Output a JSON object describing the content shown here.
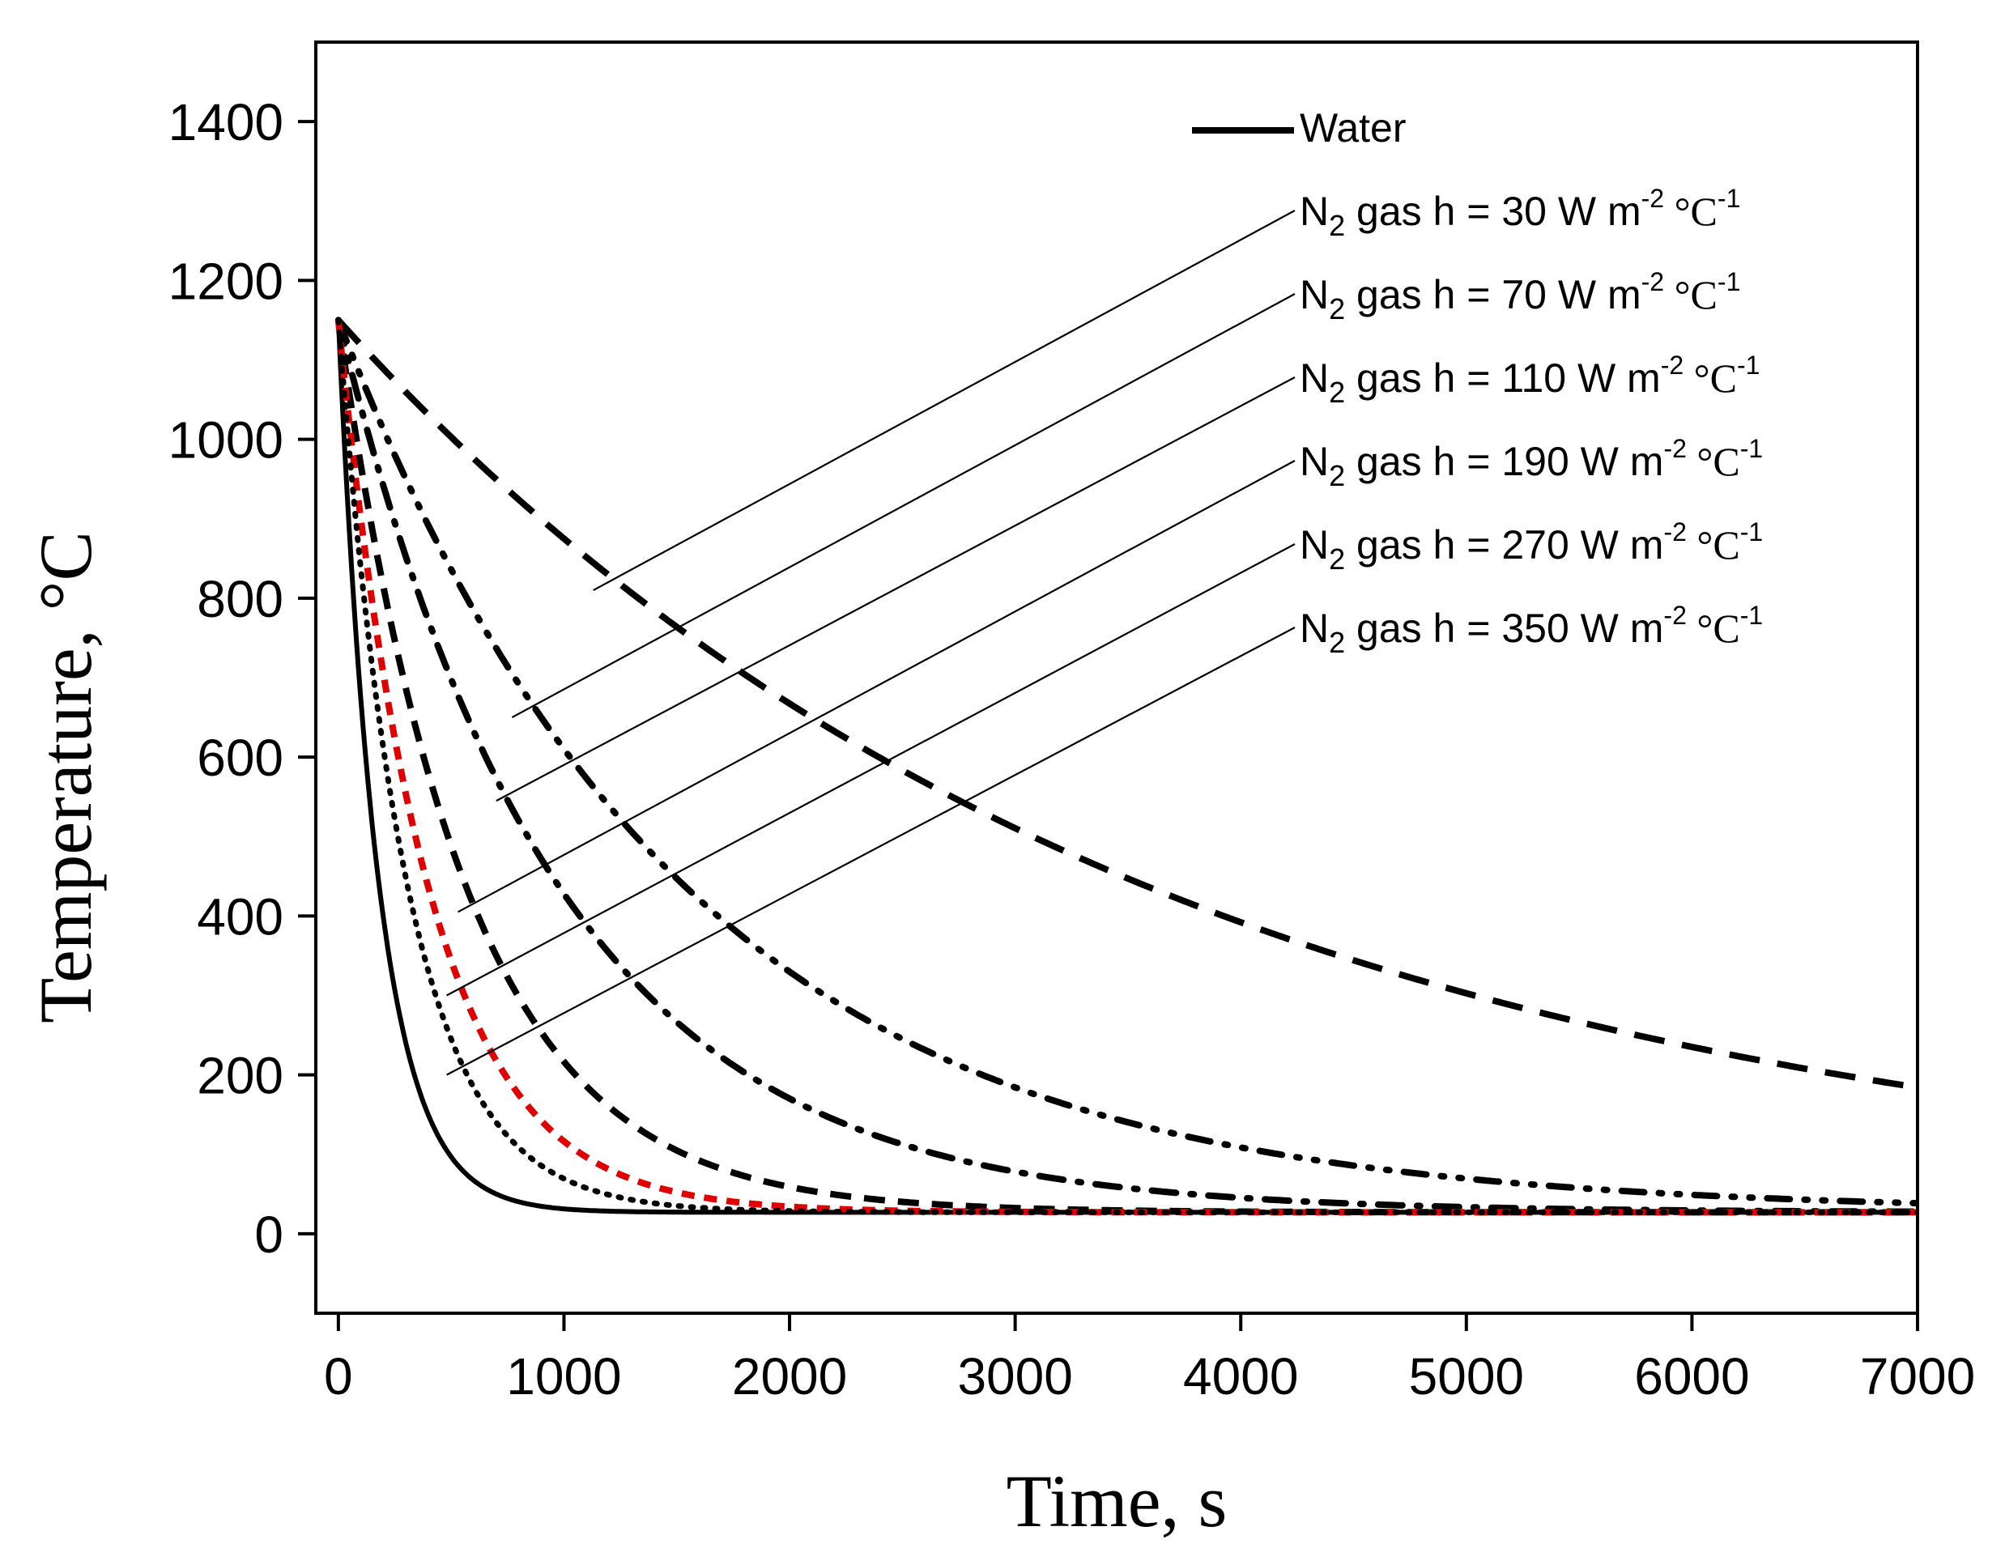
{
  "chart_data": {
    "type": "line",
    "title": "",
    "xlabel": "Time, s",
    "ylabel": "Temperature, °C",
    "xlim": [
      -100,
      7000
    ],
    "ylim": [
      -100,
      1500
    ],
    "xticks": [
      0,
      1000,
      2000,
      3000,
      4000,
      5000,
      6000,
      7000
    ],
    "yticks": [
      0,
      200,
      400,
      600,
      800,
      1000,
      1200,
      1400
    ],
    "x_tick_labels": [
      "0",
      "1000",
      "2000",
      "3000",
      "4000",
      "5000",
      "6000",
      "7000"
    ],
    "y_tick_labels": [
      "0",
      "200",
      "400",
      "600",
      "800",
      "1000",
      "1200",
      "1400"
    ],
    "grid": false,
    "legend_position": "top-right",
    "series": [
      {
        "id": "water",
        "name": "Water",
        "prefix": "",
        "subscript": "",
        "middle": "",
        "h_value": "",
        "unit_w": "",
        "unit_m": "",
        "exp1": "",
        "unit_c": "",
        "exp2": "",
        "color": "#000000",
        "dash": "solid",
        "t_initial": 1150,
        "t_ambient": 27,
        "time_constant": 180
      },
      {
        "id": "h30",
        "name": "N2 gas  h = 30 W m-2 °C-1",
        "prefix": "N",
        "subscript": "2",
        "middle": " gas  h = ",
        "h_value": "30",
        "unit_w": " W m",
        "unit_m": "",
        "exp1": "-2",
        "unit_c": " °C",
        "exp2": "-1",
        "color": "#000000",
        "dash": "long-dash",
        "t_initial": 1150,
        "t_ambient": 27,
        "time_constant": 3560,
        "pointer_x": 1130,
        "pointer_y": 810
      },
      {
        "id": "h70",
        "name": "N2 gas  h = 70 W m-2 °C-1",
        "prefix": "N",
        "subscript": "2",
        "middle": " gas  h = ",
        "h_value": "70",
        "unit_w": " W m",
        "unit_m": "",
        "exp1": "-2",
        "unit_c": " °C",
        "exp2": "-1",
        "color": "#000000",
        "dash": "dash-dot-dot",
        "t_initial": 1150,
        "t_ambient": 27,
        "time_constant": 1526,
        "pointer_x": 770,
        "pointer_y": 650
      },
      {
        "id": "h110",
        "name": "N2 gas  h = 110 W m-2 °C-1",
        "prefix": "N",
        "subscript": "2",
        "middle": " gas  h = ",
        "h_value": "110",
        "unit_w": " W m",
        "unit_m": "",
        "exp1": "-2",
        "unit_c": " °C",
        "exp2": "-1",
        "color": "#000000",
        "dash": "dash-dot",
        "t_initial": 1150,
        "t_ambient": 27,
        "time_constant": 971,
        "pointer_x": 700,
        "pointer_y": 545
      },
      {
        "id": "h190",
        "name": "N2 gas  h = 190 W m-2 °C-1",
        "prefix": "N",
        "subscript": "2",
        "middle": " gas  h = ",
        "h_value": "190",
        "unit_w": " W m",
        "unit_m": "",
        "exp1": "-2",
        "unit_c": " °C",
        "exp2": "-1",
        "color": "#000000",
        "dash": "medium-dash",
        "t_initial": 1150,
        "t_ambient": 27,
        "time_constant": 562,
        "pointer_x": 530,
        "pointer_y": 405
      },
      {
        "id": "h270",
        "name": "N2 gas  h = 270 W m-2 °C-1",
        "prefix": "N",
        "subscript": "2",
        "middle": " gas  h = ",
        "h_value": "270",
        "unit_w": " W m",
        "unit_m": "",
        "exp1": "-2",
        "unit_c": " °C",
        "exp2": "-1",
        "color": "#e00000",
        "dash": "short-dash",
        "t_initial": 1150,
        "t_ambient": 27,
        "time_constant": 395,
        "pointer_x": 480,
        "pointer_y": 300
      },
      {
        "id": "h350",
        "name": "N2 gas  h = 350 W m-2 °C-1",
        "prefix": "N",
        "subscript": "2",
        "middle": " gas  h = ",
        "h_value": "350",
        "unit_w": " W m",
        "unit_m": "",
        "exp1": "-2",
        "unit_c": " °C",
        "exp2": "-1",
        "color": "#000000",
        "dash": "dotted",
        "t_initial": 1150,
        "t_ambient": 27,
        "time_constant": 305,
        "pointer_x": 480,
        "pointer_y": 200
      }
    ]
  }
}
